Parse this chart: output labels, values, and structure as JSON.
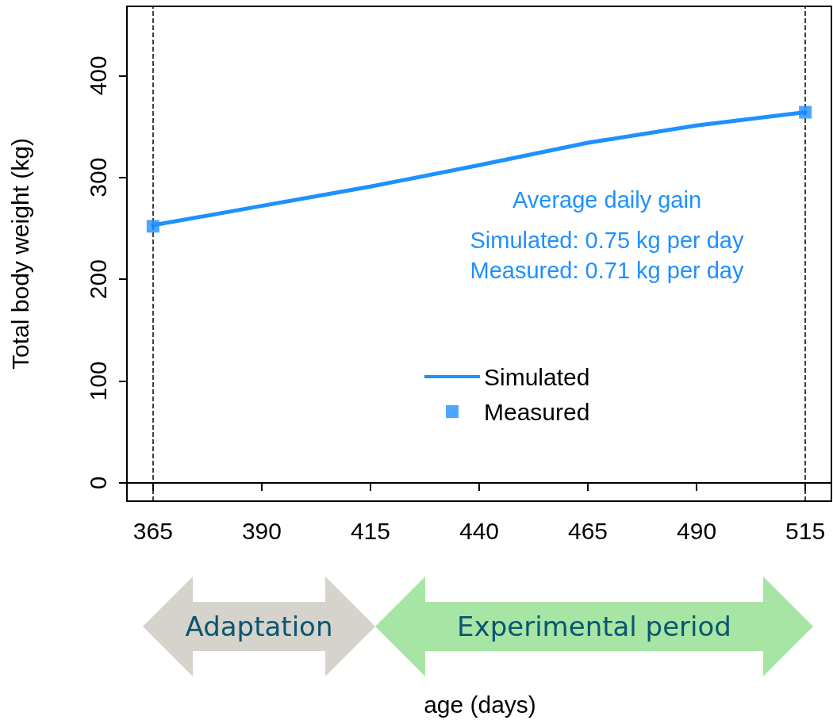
{
  "chart_data": {
    "type": "line",
    "ylabel": "Total body weight (kg)",
    "xlim": [
      359,
      521
    ],
    "xticks": [
      365,
      390,
      415,
      440,
      465,
      490,
      515
    ],
    "ylim": [
      -18,
      468
    ],
    "yticks": [
      0,
      100,
      200,
      300,
      400
    ],
    "series": [
      {
        "name": "Simulated",
        "type": "line",
        "color": "#1e90ff",
        "marker": "none",
        "x": [
          365,
          390,
          415,
          440,
          465,
          490,
          515
        ],
        "values": [
          253,
          272,
          291,
          312,
          334,
          351,
          364
        ]
      },
      {
        "name": "Measured",
        "type": "scatter",
        "color": "#1e90ff",
        "marker": "square",
        "x": [
          365,
          515
        ],
        "values": [
          252,
          364
        ]
      }
    ],
    "ref_lines": [
      {
        "axis": "x",
        "value": 365,
        "color": "#000000",
        "line_style": "dashed"
      },
      {
        "axis": "x",
        "value": 515,
        "color": "#000000",
        "line_style": "dashed"
      }
    ],
    "annotations": [
      "Average daily gain",
      "Simulated: 0.75 kg per day",
      "Measured: 0.71 kg per day",
      "Adaptation",
      "Experimental period",
      "age (days)"
    ],
    "legend": "bottom",
    "grid": false,
    "line_style": "solid"
  }
}
